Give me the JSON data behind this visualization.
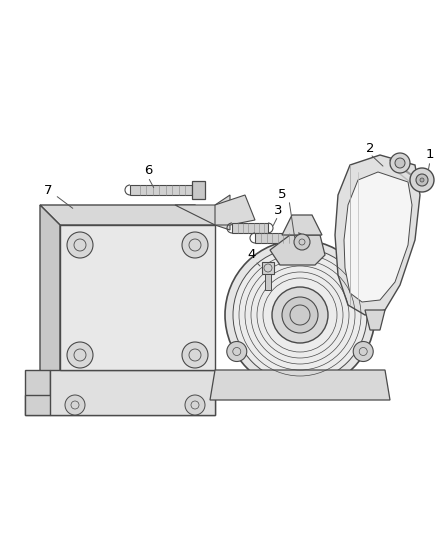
{
  "background_color": "#ffffff",
  "line_color": "#4a4a4a",
  "label_color": "#000000",
  "label_fontsize": 9.5,
  "fig_width": 4.38,
  "fig_height": 5.33,
  "dpi": 100
}
